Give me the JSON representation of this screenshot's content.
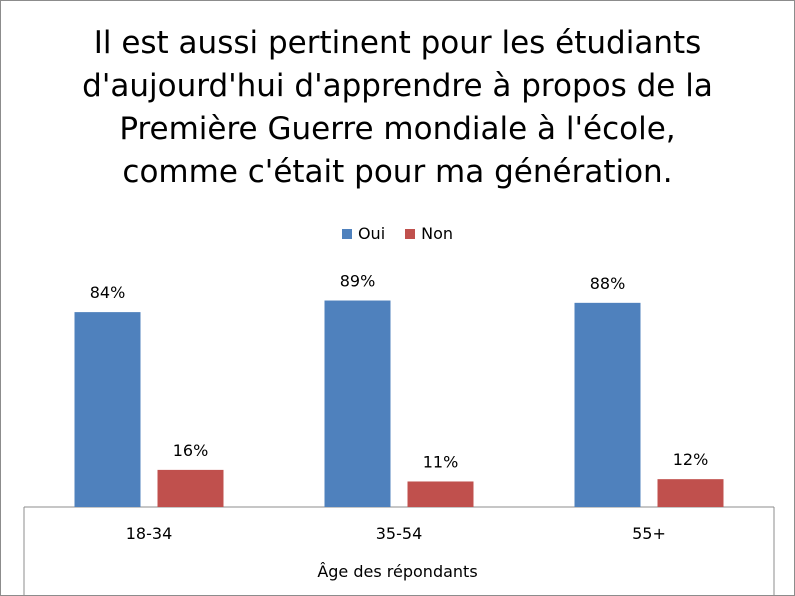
{
  "chart_data": {
    "type": "bar",
    "title_lines": [
      "Il est aussi pertinent pour les étudiants",
      "d'aujourd'hui d'apprendre à propos de la",
      "Première Guerre mondiale à l'école,",
      "comme c'était pour ma génération."
    ],
    "xlabel": "Âge des répondants",
    "ylabel": "",
    "categories": [
      "18-34",
      "35-54",
      "55+"
    ],
    "series": [
      {
        "name": "Oui",
        "color": "#4f81bd",
        "values": [
          84,
          89,
          88
        ],
        "labels": [
          "84%",
          "89%",
          "88%"
        ]
      },
      {
        "name": "Non",
        "color": "#c0504d",
        "values": [
          16,
          11,
          12
        ],
        "labels": [
          "16%",
          "11%",
          "12%"
        ]
      }
    ],
    "ylim": [
      0,
      100
    ],
    "grid": false,
    "legend_position": "top"
  }
}
